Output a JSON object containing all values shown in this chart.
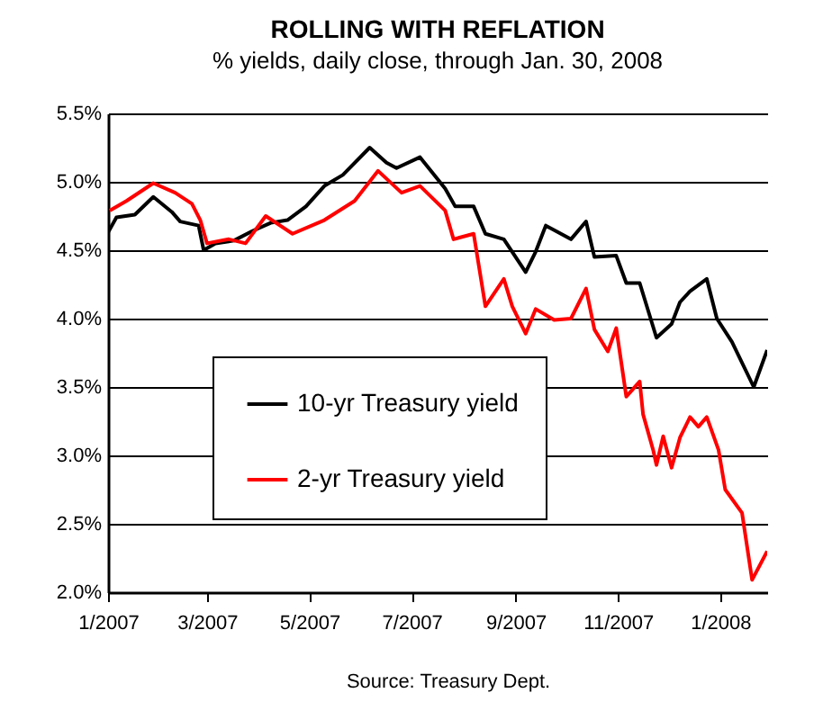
{
  "chart_data": {
    "type": "line",
    "title": "ROLLING WITH REFLATION",
    "subtitle": "% yields, daily close, through Jan. 30, 2008",
    "annotations": [
      "Source: Treasury Dept."
    ],
    "xlim": [
      "2007-01-02",
      "2008-01-30"
    ],
    "xticks": [
      {
        "value": "2007-01-02",
        "label": "1/2007"
      },
      {
        "value": "2007-03-02",
        "label": "3/2007"
      },
      {
        "value": "2007-05-02",
        "label": "5/2007"
      },
      {
        "value": "2007-07-02",
        "label": "7/2007"
      },
      {
        "value": "2007-09-02",
        "label": "9/2007"
      },
      {
        "value": "2007-11-02",
        "label": "11/2007"
      },
      {
        "value": "2008-01-02",
        "label": "1/2008"
      }
    ],
    "ylim": [
      2.0,
      5.5
    ],
    "yticks": [
      {
        "value": 2.0,
        "label": "2.0%"
      },
      {
        "value": 2.5,
        "label": "2.5%"
      },
      {
        "value": 3.0,
        "label": "3.0%"
      },
      {
        "value": 3.5,
        "label": "3.5%"
      },
      {
        "value": 4.0,
        "label": "4.0%"
      },
      {
        "value": 4.5,
        "label": "4.5%"
      },
      {
        "value": 5.0,
        "label": "5.0%"
      },
      {
        "value": 5.5,
        "label": "5.5%"
      }
    ],
    "grid": "y",
    "legend": "center",
    "series": [
      {
        "name": "10-yr Treasury yield",
        "color": "#000000",
        "x": [
          "2007-01-02",
          "2007-01-07",
          "2007-01-18",
          "2007-01-29",
          "2007-02-09",
          "2007-02-14",
          "2007-02-25",
          "2007-02-28",
          "2007-03-07",
          "2007-03-18",
          "2007-03-29",
          "2007-04-09",
          "2007-04-19",
          "2007-04-30",
          "2007-05-11",
          "2007-05-22",
          "2007-06-07",
          "2007-06-17",
          "2007-06-23",
          "2007-07-07",
          "2007-07-22",
          "2007-07-28",
          "2007-08-08",
          "2007-08-15",
          "2007-08-26",
          "2007-09-08",
          "2007-09-14",
          "2007-09-20",
          "2007-10-05",
          "2007-10-14",
          "2007-10-19",
          "2007-11-01",
          "2007-11-07",
          "2007-11-15",
          "2007-11-25",
          "2007-12-04",
          "2007-12-09",
          "2007-12-15",
          "2007-12-25",
          "2007-12-31",
          "2008-01-09",
          "2008-01-22",
          "2008-01-30"
        ],
        "values": [
          4.63,
          4.74,
          4.76,
          4.89,
          4.78,
          4.71,
          4.68,
          4.5,
          4.55,
          4.57,
          4.64,
          4.7,
          4.72,
          4.82,
          4.97,
          5.05,
          5.25,
          5.14,
          5.1,
          5.18,
          4.95,
          4.82,
          4.82,
          4.62,
          4.58,
          4.34,
          4.49,
          4.68,
          4.58,
          4.71,
          4.45,
          4.46,
          4.26,
          4.26,
          3.86,
          3.96,
          4.12,
          4.2,
          4.29,
          4.0,
          3.83,
          3.5,
          3.77
        ]
      },
      {
        "name": "2-yr Treasury yield",
        "color": "#ff0000",
        "x": [
          "2007-01-03",
          "2007-01-13",
          "2007-01-29",
          "2007-02-11",
          "2007-02-21",
          "2007-02-26",
          "2007-03-02",
          "2007-03-15",
          "2007-03-25",
          "2007-04-06",
          "2007-04-22",
          "2007-05-11",
          "2007-05-29",
          "2007-06-12",
          "2007-06-26",
          "2007-07-07",
          "2007-07-22",
          "2007-07-27",
          "2007-08-08",
          "2007-08-15",
          "2007-08-26",
          "2007-08-31",
          "2007-09-08",
          "2007-09-14",
          "2007-09-25",
          "2007-10-05",
          "2007-10-14",
          "2007-10-19",
          "2007-10-27",
          "2007-11-01",
          "2007-11-07",
          "2007-11-15",
          "2007-11-17",
          "2007-11-23",
          "2007-11-25",
          "2007-11-29",
          "2007-12-04",
          "2007-12-09",
          "2007-12-15",
          "2007-12-20",
          "2007-12-25",
          "2008-01-01",
          "2008-01-05",
          "2008-01-15",
          "2008-01-21",
          "2008-01-30"
        ],
        "values": [
          4.79,
          4.86,
          4.99,
          4.92,
          4.84,
          4.72,
          4.55,
          4.58,
          4.55,
          4.75,
          4.62,
          4.72,
          4.86,
          5.08,
          4.92,
          4.97,
          4.79,
          4.58,
          4.62,
          4.09,
          4.29,
          4.09,
          3.89,
          4.07,
          3.99,
          4.0,
          4.22,
          3.92,
          3.76,
          3.93,
          3.43,
          3.54,
          3.3,
          3.04,
          2.93,
          3.14,
          2.91,
          3.13,
          3.28,
          3.21,
          3.28,
          3.04,
          2.75,
          2.58,
          2.09,
          2.3
        ]
      }
    ]
  }
}
